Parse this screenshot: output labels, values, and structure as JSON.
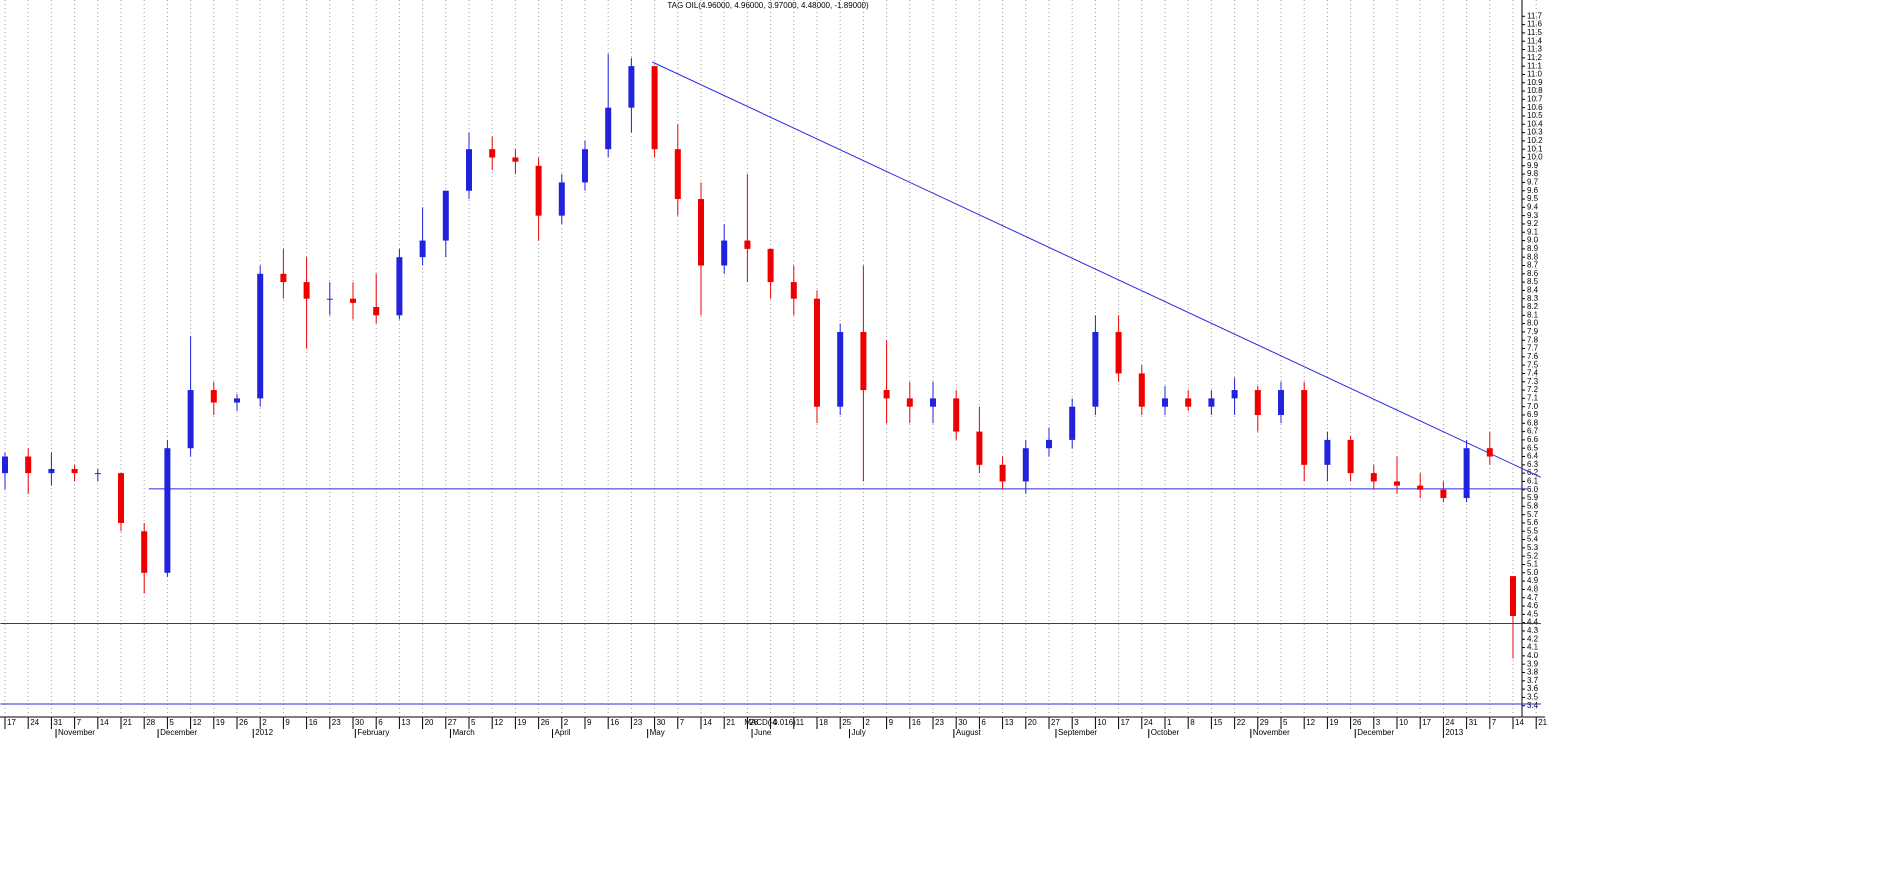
{
  "chart_data": {
    "type": "candlestick",
    "title": "TAG OIL(4.96000, 4.96000, 3.97000, 4.48000, -1.89000)",
    "annotation": "MACD(-0.016)",
    "categories": [
      "17",
      "24",
      "31",
      "7",
      "14",
      "21",
      "28",
      "5",
      "12",
      "19",
      "26",
      "2",
      "9",
      "16",
      "23",
      "30",
      "6",
      "13",
      "20",
      "27",
      "5",
      "12",
      "19",
      "26",
      "2",
      "9",
      "16",
      "23",
      "30",
      "7",
      "14",
      "21",
      "28",
      "4",
      "11",
      "18",
      "25",
      "2",
      "9",
      "16",
      "23",
      "30",
      "6",
      "13",
      "20",
      "27",
      "3",
      "10",
      "17",
      "24",
      "1",
      "8",
      "15",
      "22",
      "29",
      "5",
      "12",
      "19",
      "26",
      "3",
      "10",
      "17",
      "24",
      "31",
      "7",
      "14",
      "21"
    ],
    "months": [
      {
        "label": "November",
        "at": 2.2
      },
      {
        "label": "December",
        "at": 6.6
      },
      {
        "label": "2012",
        "at": 10.7
      },
      {
        "label": "February",
        "at": 15.1
      },
      {
        "label": "March",
        "at": 19.2
      },
      {
        "label": "April",
        "at": 23.6
      },
      {
        "label": "May",
        "at": 27.7
      },
      {
        "label": "June",
        "at": 32.2
      },
      {
        "label": "July",
        "at": 36.4
      },
      {
        "label": "August",
        "at": 40.9
      },
      {
        "label": "September",
        "at": 45.3
      },
      {
        "label": "October",
        "at": 49.3
      },
      {
        "label": "November",
        "at": 53.7
      },
      {
        "label": "December",
        "at": 58.2
      },
      {
        "label": "2013",
        "at": 62.0
      }
    ],
    "open": [
      6.2,
      6.4,
      6.2,
      6.25,
      6.2,
      6.2,
      5.5,
      5.0,
      6.5,
      7.2,
      7.05,
      7.1,
      8.6,
      8.5,
      8.3,
      8.3,
      8.2,
      8.1,
      8.8,
      9.0,
      9.6,
      10.1,
      10.0,
      9.9,
      9.3,
      9.7,
      10.1,
      10.6,
      11.1,
      10.1,
      9.5,
      8.7,
      9.0,
      8.9,
      8.5,
      8.3,
      7.0,
      7.9,
      7.2,
      7.1,
      7.0,
      7.1,
      6.7,
      6.3,
      6.1,
      6.5,
      6.6,
      7.0,
      7.9,
      7.4,
      7.0,
      7.1,
      7.0,
      7.1,
      7.2,
      6.9,
      7.2,
      6.3,
      6.6,
      6.2,
      6.1,
      6.05,
      6.0,
      5.9,
      6.5,
      4.96,
      null
    ],
    "high": [
      6.45,
      6.5,
      6.45,
      6.3,
      6.25,
      6.2,
      5.6,
      6.6,
      7.85,
      7.3,
      7.15,
      8.7,
      8.9,
      8.8,
      8.5,
      8.5,
      8.6,
      8.9,
      9.4,
      9.6,
      10.3,
      10.25,
      10.1,
      10.0,
      9.8,
      10.2,
      11.25,
      11.2,
      11.1,
      10.4,
      9.7,
      9.2,
      9.8,
      8.9,
      8.7,
      8.4,
      8.0,
      8.7,
      7.8,
      7.3,
      7.3,
      7.2,
      7.0,
      6.4,
      6.6,
      6.75,
      7.1,
      8.1,
      8.1,
      7.5,
      7.25,
      7.2,
      7.2,
      7.35,
      7.25,
      7.3,
      7.3,
      6.7,
      6.65,
      6.3,
      6.4,
      6.2,
      6.1,
      6.6,
      6.7,
      4.96,
      null
    ],
    "low": [
      6.0,
      5.95,
      6.05,
      6.1,
      6.1,
      5.5,
      4.75,
      4.95,
      6.4,
      6.9,
      6.95,
      7.0,
      8.3,
      7.7,
      8.1,
      8.05,
      8.0,
      8.05,
      8.7,
      8.8,
      9.5,
      9.85,
      9.8,
      9.0,
      9.2,
      9.6,
      10.0,
      10.3,
      10.0,
      9.3,
      8.1,
      8.6,
      8.5,
      8.3,
      8.1,
      6.8,
      6.9,
      6.1,
      6.8,
      6.8,
      6.8,
      6.6,
      6.2,
      6.0,
      5.95,
      6.4,
      6.5,
      6.9,
      7.3,
      6.9,
      6.9,
      6.95,
      6.9,
      6.9,
      6.7,
      6.8,
      6.1,
      6.1,
      6.1,
      6.0,
      5.95,
      5.9,
      5.85,
      5.85,
      6.3,
      3.97,
      null
    ],
    "close": [
      6.4,
      6.2,
      6.25,
      6.2,
      6.2,
      5.6,
      5.0,
      6.5,
      7.2,
      7.05,
      7.1,
      8.6,
      8.5,
      8.3,
      8.3,
      8.25,
      8.1,
      8.8,
      9.0,
      9.6,
      10.1,
      10.0,
      9.95,
      9.3,
      9.7,
      10.1,
      10.6,
      11.1,
      10.1,
      9.5,
      8.7,
      9.0,
      8.9,
      8.5,
      8.3,
      7.0,
      7.9,
      7.2,
      7.1,
      7.0,
      7.1,
      6.7,
      6.3,
      6.1,
      6.5,
      6.6,
      7.0,
      7.9,
      7.4,
      7.0,
      7.1,
      7.0,
      7.1,
      7.2,
      6.9,
      7.2,
      6.3,
      6.6,
      6.2,
      6.1,
      6.05,
      6.0,
      5.9,
      6.5,
      6.4,
      4.48,
      null
    ],
    "up_color": "#2222dd",
    "down_color": "#ee0000",
    "line_color": "#2a2ae0",
    "trendline": {
      "from": [
        27.9,
        11.15
      ],
      "to": [
        66.2,
        6.15
      ]
    },
    "levels": [
      {
        "value": 6.01,
        "from": 6.2,
        "to": 65.6
      },
      {
        "value": 4.39,
        "from": -0.2,
        "to": 66.2
      },
      {
        "value": 3.42,
        "from": -0.2,
        "to": 66.2
      }
    ],
    "ylim": [
      3.3,
      11.8
    ],
    "yticks": [
      3.4,
      3.5,
      3.6,
      3.7,
      3.8,
      3.9,
      {
        "value": 4,
        "label": "4.0"
      },
      4.1,
      4.2,
      4.3,
      4.4,
      4.5,
      4.6,
      4.7,
      4.8,
      4.9,
      {
        "value": 5,
        "label": "5.0"
      },
      5.1,
      5.2,
      5.3,
      5.4,
      5.5,
      5.6,
      5.7,
      5.8,
      5.9,
      {
        "value": 6,
        "label": "6.0"
      },
      6.1,
      6.2,
      6.3,
      6.4,
      6.5,
      6.6,
      6.7,
      6.8,
      6.9,
      {
        "value": 7,
        "label": "7.0"
      },
      7.1,
      7.2,
      7.3,
      7.4,
      7.5,
      7.6,
      7.7,
      7.8,
      7.9,
      {
        "value": 8,
        "label": "8.0"
      },
      8.1,
      8.2,
      8.3,
      8.4,
      8.5,
      8.6,
      8.7,
      8.8,
      8.9,
      {
        "value": 9,
        "label": "9.0"
      },
      9.1,
      9.2,
      9.3,
      9.4,
      9.5,
      9.6,
      9.7,
      9.8,
      9.9,
      {
        "value": 10,
        "label": "10.0"
      },
      10.1,
      10.2,
      10.3,
      10.4,
      10.5,
      10.6,
      10.7,
      10.8,
      10.9,
      {
        "value": 11,
        "label": "11.0"
      },
      11.1,
      11.2,
      11.3,
      11.4,
      11.5,
      11.6,
      11.7
    ],
    "grid": true
  }
}
